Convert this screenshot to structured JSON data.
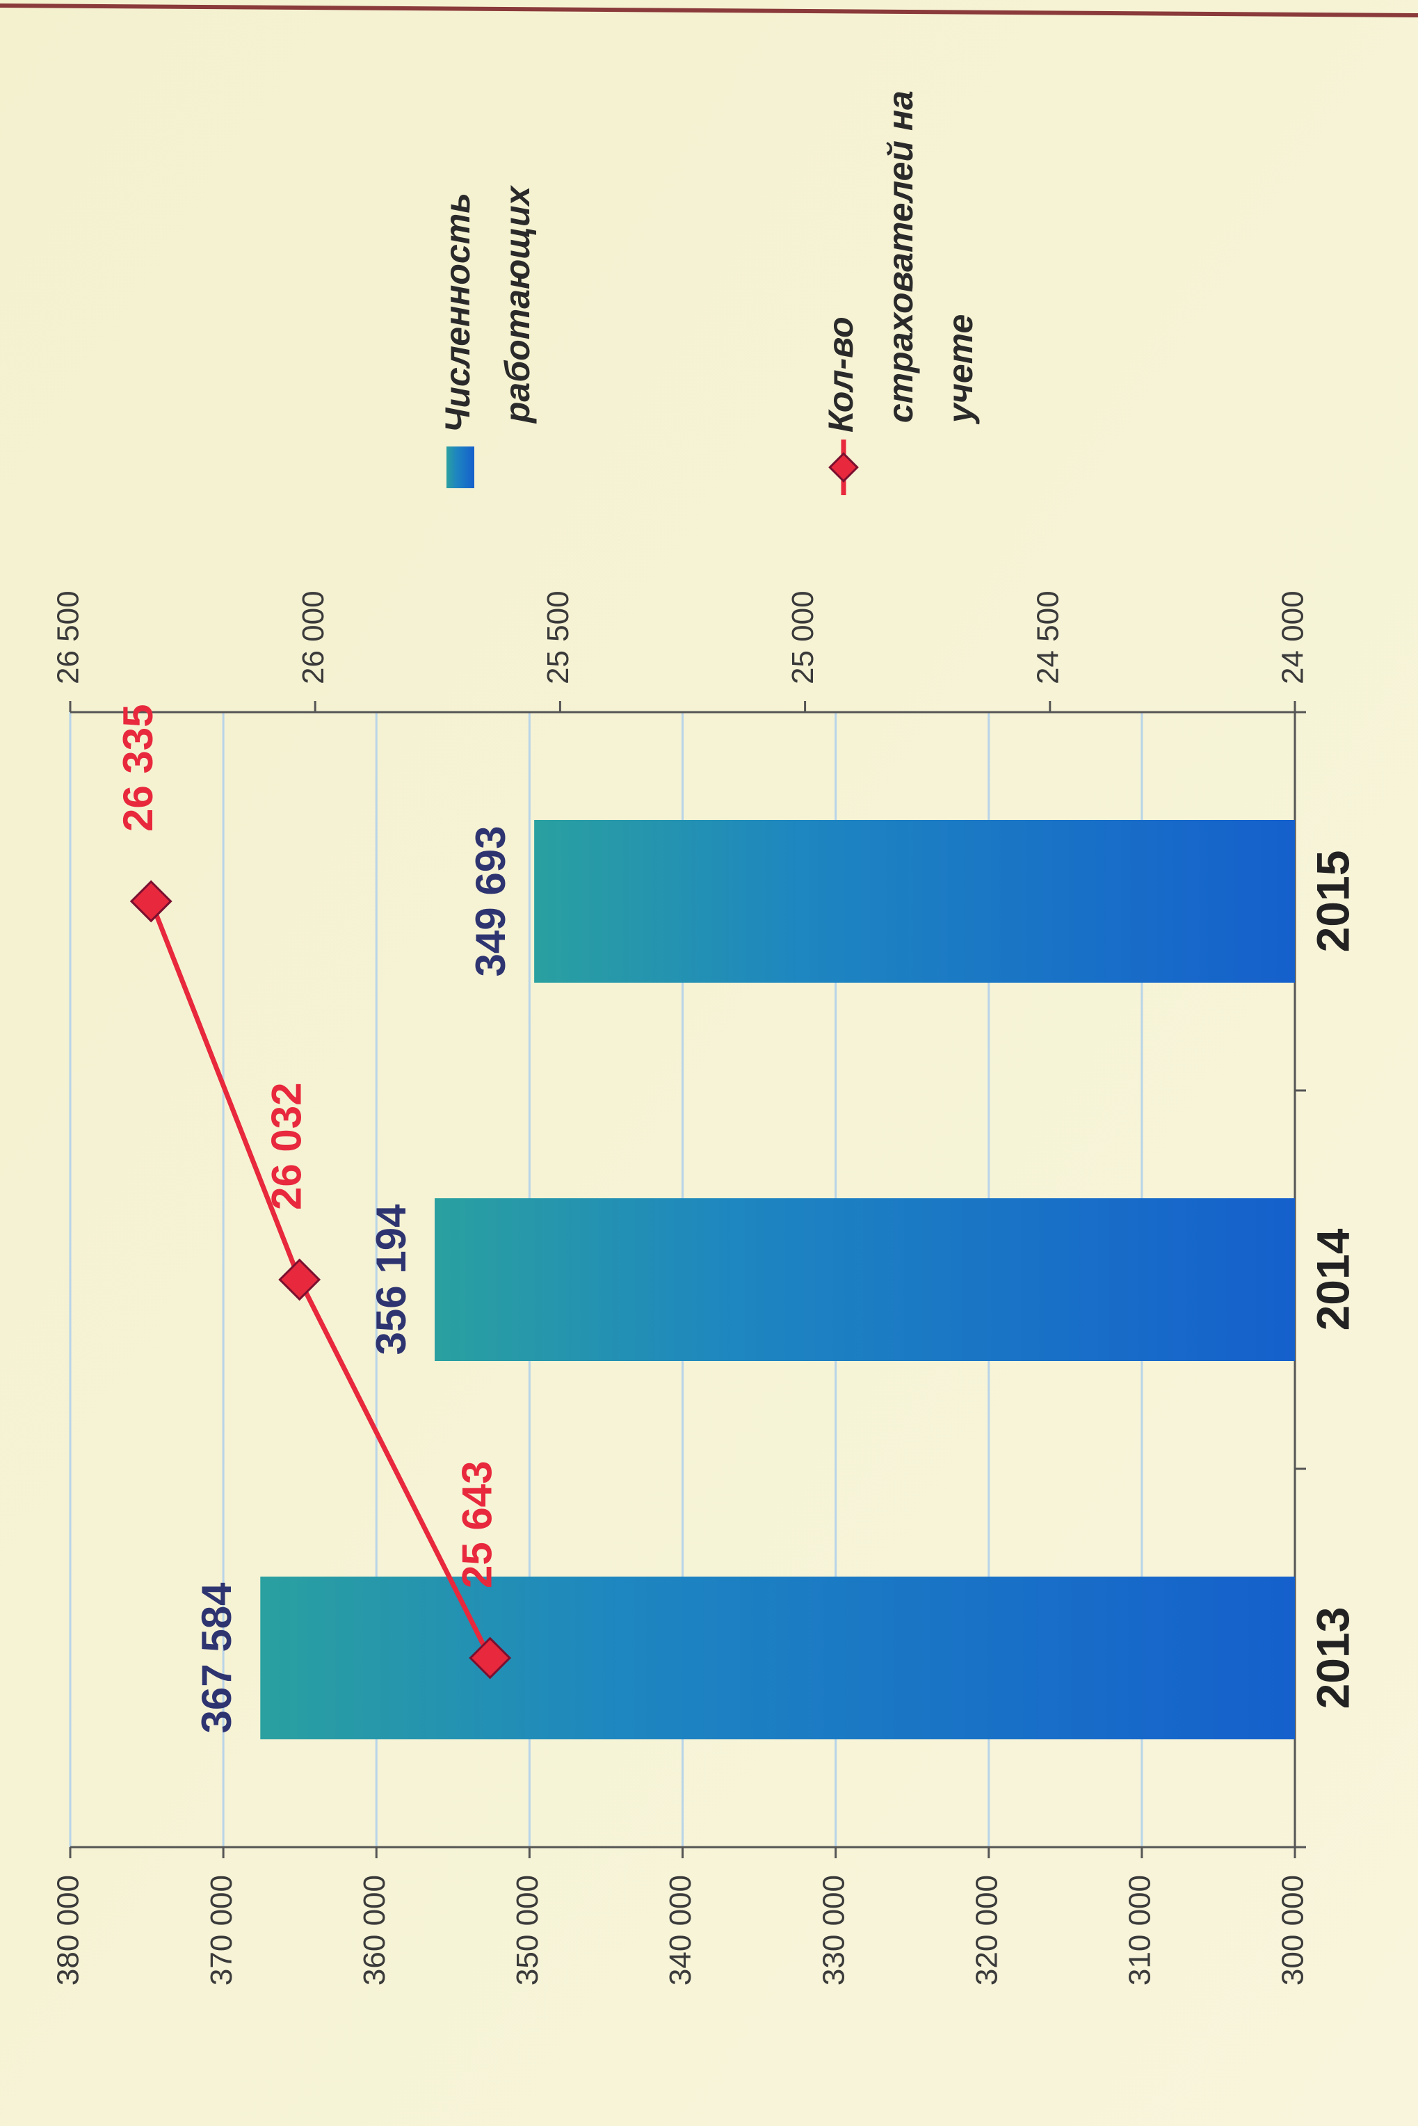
{
  "chart_data": {
    "type": "bar_line",
    "categories": [
      "2013",
      "2014",
      "2015"
    ],
    "series": [
      {
        "name": "Численность работающих",
        "type": "bar",
        "color": "#1a6fd0",
        "values": [
          367584,
          356194,
          349693
        ],
        "value_labels": [
          "367 584",
          "356 194",
          "349 693"
        ]
      },
      {
        "name": "Кол-во страхователей на учете",
        "type": "line",
        "axis": "y2",
        "color": "#e8283c",
        "values": [
          25643,
          26032,
          26335
        ],
        "value_labels": [
          "25 643",
          "26 032",
          "26 335"
        ]
      }
    ],
    "ylim": [
      300000,
      380000
    ],
    "yticks": [
      {
        "value": 300000,
        "label": "300 000"
      },
      {
        "value": 310000,
        "label": "310 000"
      },
      {
        "value": 320000,
        "label": "320 000"
      },
      {
        "value": 330000,
        "label": "330 000"
      },
      {
        "value": 340000,
        "label": "340 000"
      },
      {
        "value": 350000,
        "label": "350 000"
      },
      {
        "value": 360000,
        "label": "360 000"
      },
      {
        "value": 370000,
        "label": "370 000"
      },
      {
        "value": 380000,
        "label": "380 000"
      }
    ],
    "y2lim": [
      24000,
      26500
    ],
    "y2ticks": [
      {
        "value": 24000,
        "label": "24 000"
      },
      {
        "value": 24500,
        "label": "24 500"
      },
      {
        "value": 25000,
        "label": "25 000"
      },
      {
        "value": 25500,
        "label": "25 500"
      },
      {
        "value": 26000,
        "label": "26 000"
      },
      {
        "value": 26500,
        "label": "26 500"
      }
    ],
    "grid": true,
    "legend": "right"
  }
}
